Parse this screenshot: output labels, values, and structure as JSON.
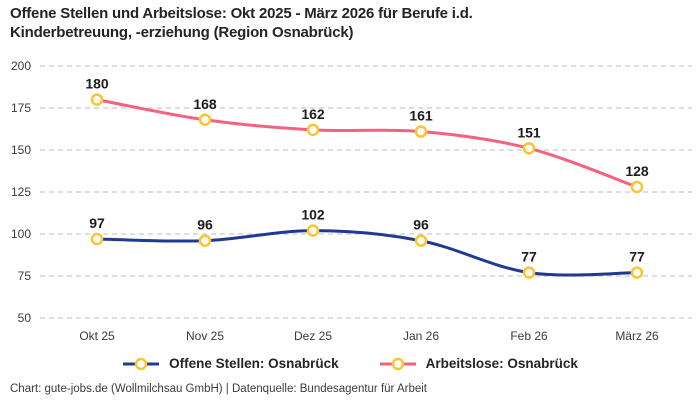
{
  "title": {
    "lines": [
      "Offene Stellen und Arbeitslose: Okt 2025 - März 2026 für Berufe i.d.",
      "Kinderbetreuung, -erziehung (Region Osnabrück)"
    ]
  },
  "chart_data": {
    "type": "line",
    "title": "Offene Stellen und Arbeitslose: Okt 2025 - März 2026 für Berufe i.d. Kinderbetreuung, -erziehung (Region Osnabrück)",
    "categories": [
      "Okt 25",
      "Nov 25",
      "Dez 25",
      "Jan 26",
      "Feb 26",
      "März 26"
    ],
    "series": [
      {
        "name": "Offene Stellen: Osnabrück",
        "values": [
          97,
          96,
          102,
          96,
          77,
          77
        ],
        "color": "#203a94"
      },
      {
        "name": "Arbeitslose: Osnabrück",
        "values": [
          180,
          168,
          162,
          161,
          151,
          128
        ],
        "color": "#f5617f"
      }
    ],
    "xlabel": "",
    "ylabel": "",
    "yticks": [
      50,
      75,
      100,
      125,
      150,
      175,
      200
    ],
    "ylim": [
      50,
      200
    ],
    "grid": "horizontal-dashed",
    "legend_position": "bottom",
    "line_style": "smooth",
    "marker": {
      "shape": "circle",
      "fill": "#ffffff",
      "stroke": "#fcc42d"
    },
    "data_labels": "above-points"
  },
  "colors": {
    "grid": "#cbcbcb",
    "axis_text": "#3a3a3a",
    "label_text": "#1d1d1d"
  },
  "footer": {
    "text": "Chart: gute-jobs.de (Wollmilchsau GmbH) | Datenquelle: Bundesagentur für Arbeit"
  }
}
